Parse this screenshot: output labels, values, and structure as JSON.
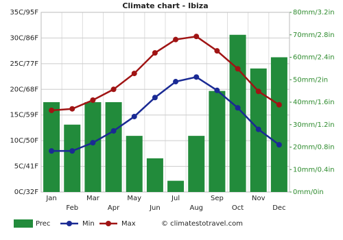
{
  "chart_data": {
    "type": "bar",
    "title": "Climate chart - Ibiza",
    "categories": [
      "Jan",
      "Feb",
      "Mar",
      "Apr",
      "May",
      "Jun",
      "Jul",
      "Aug",
      "Sep",
      "Oct",
      "Nov",
      "Dec"
    ],
    "series": [
      {
        "name": "Prec",
        "type": "bar",
        "axis": "y2",
        "color": "#228b3b",
        "values": [
          40,
          30,
          40,
          40,
          25,
          15,
          5,
          25,
          45,
          70,
          55,
          60
        ]
      },
      {
        "name": "Min",
        "type": "line",
        "color": "#1a2a94",
        "values": [
          8.0,
          8.0,
          9.6,
          11.9,
          14.7,
          18.4,
          21.5,
          22.4,
          19.8,
          16.4,
          12.2,
          9.2
        ]
      },
      {
        "name": "Max",
        "type": "line",
        "color": "#a01414",
        "values": [
          15.9,
          16.2,
          17.9,
          20.0,
          23.1,
          27.1,
          29.7,
          30.3,
          27.5,
          24.0,
          19.6,
          17.0
        ]
      }
    ],
    "ylim": [
      0,
      35
    ],
    "yticks": [
      {
        "value": 0,
        "label": "0C/32F"
      },
      {
        "value": 5,
        "label": "5C/41F"
      },
      {
        "value": 10,
        "label": "10C/50F"
      },
      {
        "value": 15,
        "label": "15C/59F"
      },
      {
        "value": 20,
        "label": "20C/68F"
      },
      {
        "value": 25,
        "label": "25C/77F"
      },
      {
        "value": 30,
        "label": "30C/86F"
      },
      {
        "value": 35,
        "label": "35C/95F"
      }
    ],
    "y2lim": [
      0,
      80
    ],
    "y2ticks": [
      {
        "value": 0,
        "label": "0mm/0in"
      },
      {
        "value": 10,
        "label": "10mm/0.4in"
      },
      {
        "value": 20,
        "label": "20mm/0.8in"
      },
      {
        "value": 30,
        "label": "30mm/1.2in"
      },
      {
        "value": 40,
        "label": "40mm/1.6in"
      },
      {
        "value": 50,
        "label": "50mm/2in"
      },
      {
        "value": 60,
        "label": "60mm/2.4in"
      },
      {
        "value": 70,
        "label": "70mm/2.8in"
      },
      {
        "value": 80,
        "label": "80mm/3.2in"
      }
    ],
    "grid": true,
    "source": "© climatestotravel.com"
  }
}
